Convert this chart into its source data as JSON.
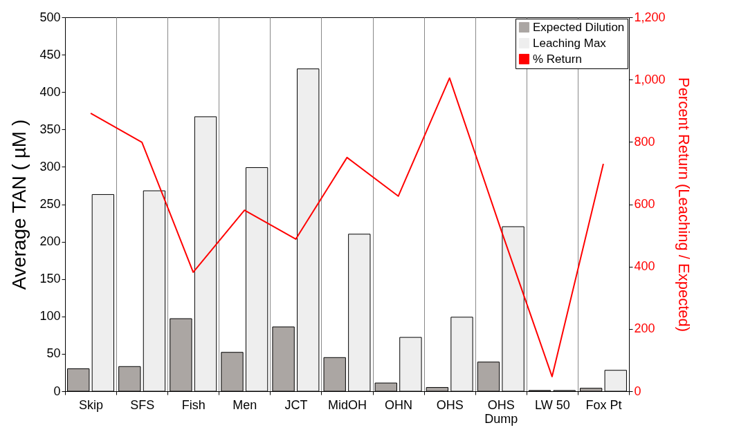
{
  "chart_data": {
    "type": "bar",
    "ylabel": "Average TAN ( µM )",
    "y2label": "Percent Return (Leaching / Expected)",
    "categories": [
      "Skip",
      "SFS",
      "Fish",
      "Men",
      "JCT",
      "MidOH",
      "OHN",
      "OHS",
      "OHS Dump",
      "LW 50",
      "Fox Pt"
    ],
    "series": [
      {
        "name": "Expected Dilution",
        "color": "#aba6a3",
        "values": [
          30,
          33,
          97,
          52,
          86,
          45,
          11,
          5,
          39,
          1,
          4
        ]
      },
      {
        "name": "Leaching Max",
        "color": "#eeeeee",
        "values": [
          263,
          268,
          367,
          299,
          431,
          210,
          72,
          99,
          220,
          1,
          28
        ]
      },
      {
        "name": "% Return",
        "type": "line",
        "axis": "y2",
        "color": "#ff0000",
        "values": [
          892,
          799,
          382,
          581,
          488,
          750,
          626,
          1005,
          520,
          47,
          730
        ]
      }
    ],
    "ylim": [
      0,
      500
    ],
    "yticks": [
      0,
      50,
      100,
      150,
      200,
      250,
      300,
      350,
      400,
      450,
      500
    ],
    "y2lim": [
      0,
      1200
    ],
    "y2ticks": [
      0,
      200,
      400,
      600,
      800,
      {
        "value": 1000,
        "label": "1,000"
      },
      {
        "value": 1200,
        "label": "1,200"
      }
    ],
    "grid": "x",
    "legend": "top right",
    "marker": "none",
    "line_style": "solid"
  }
}
